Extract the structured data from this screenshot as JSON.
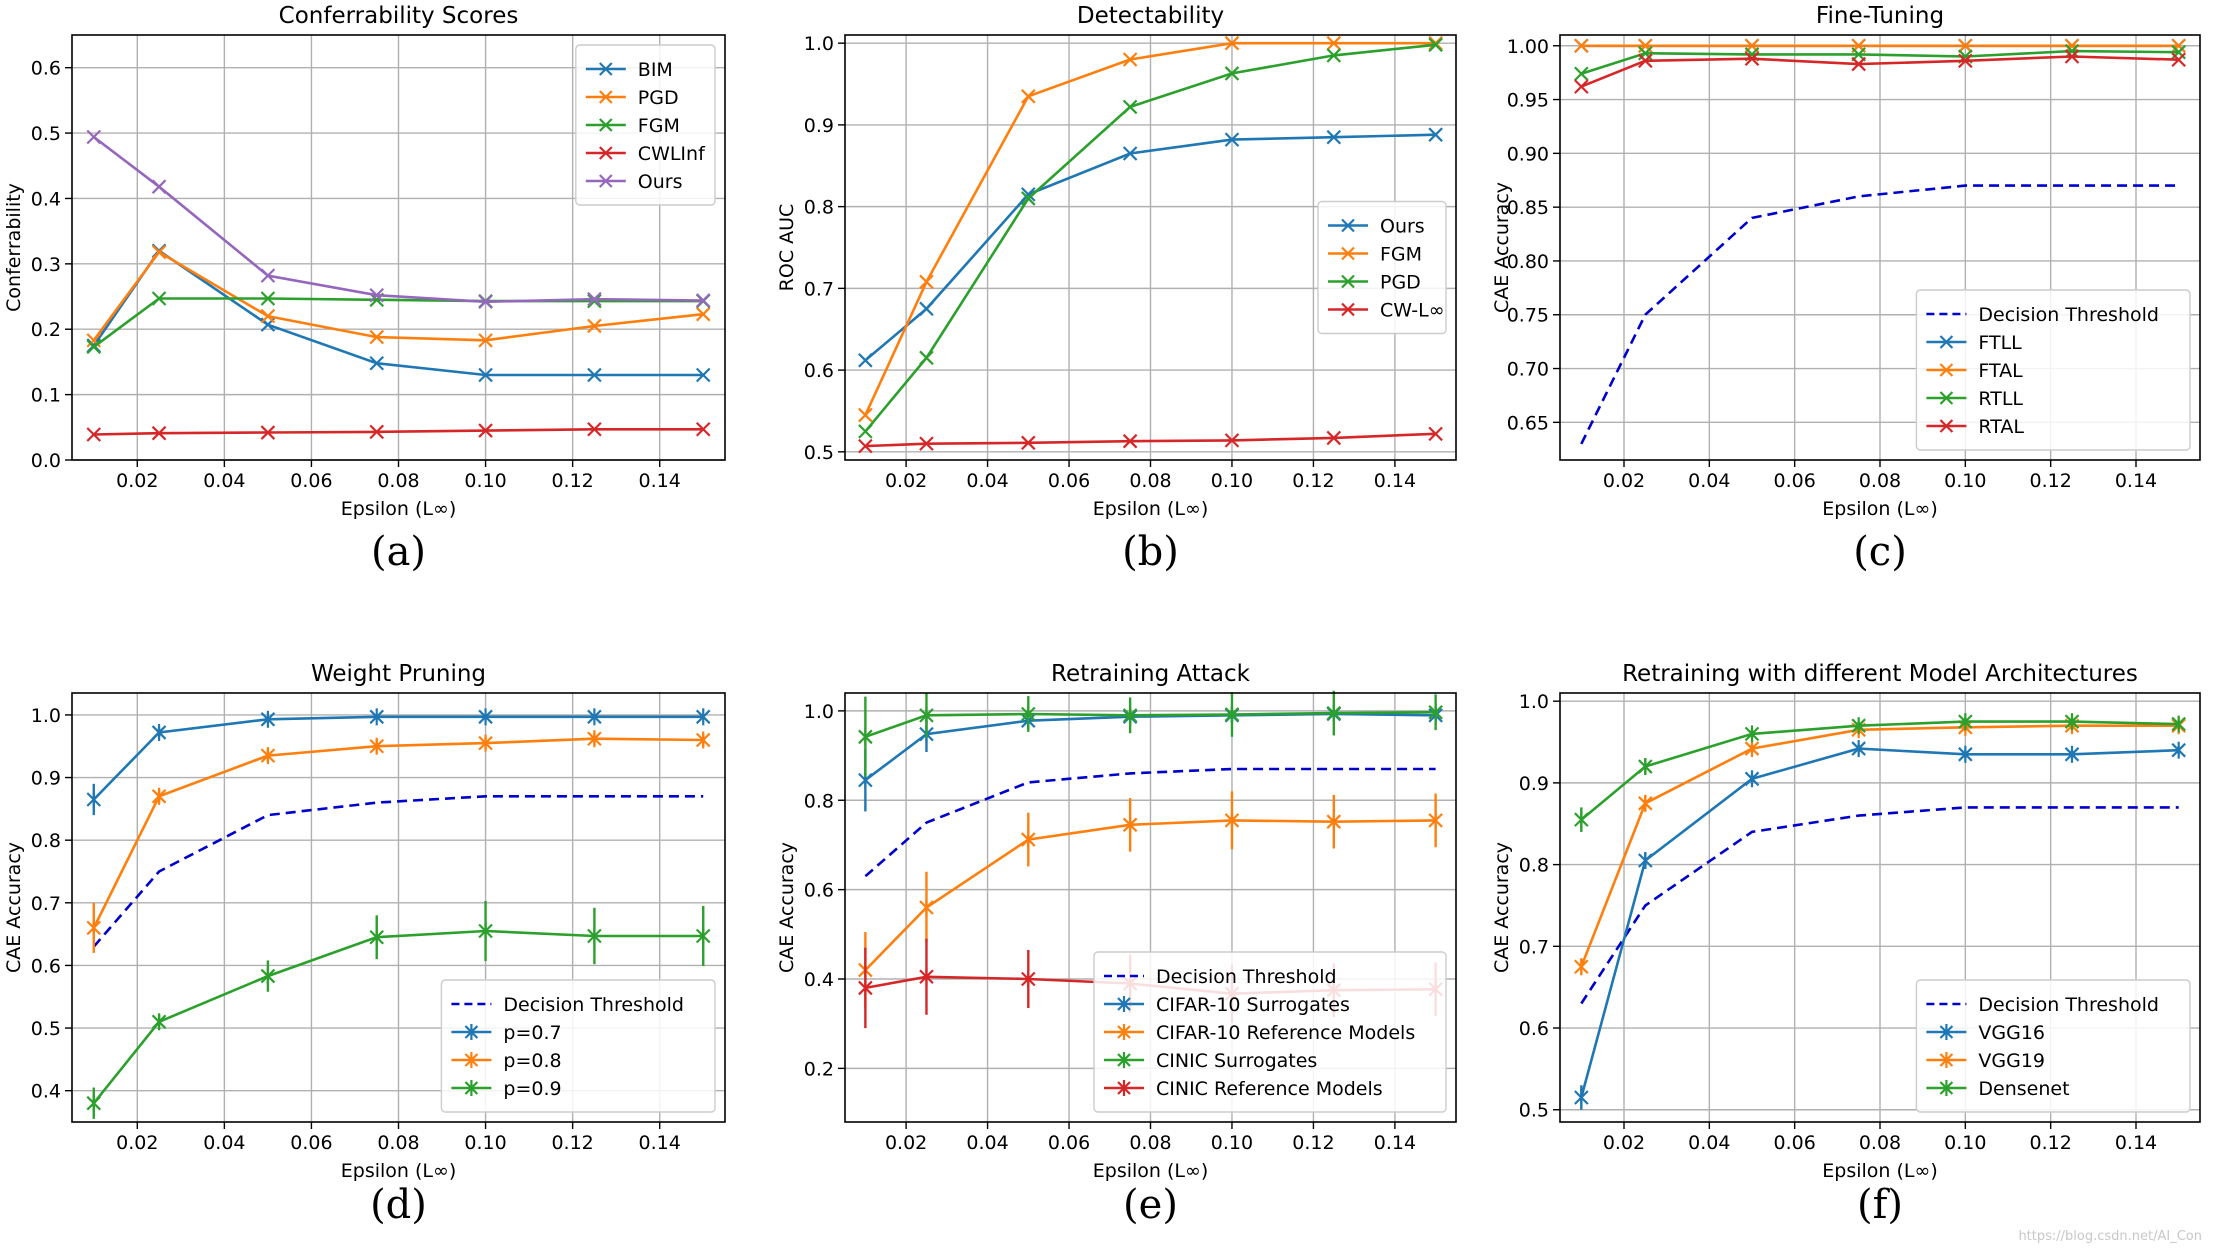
{
  "colors": {
    "blue": "#1f77b4",
    "orange": "#ff7f0e",
    "green": "#2ca02c",
    "red": "#d62728",
    "purple": "#9467bd",
    "threshold": "#0000cc"
  },
  "watermark": "https://blog.csdn.net/AI_Con",
  "chart_data": [
    {
      "type": "line",
      "caption": "(a)",
      "title": "Conferrability Scores",
      "xlabel": "Epsilon (L∞)",
      "ylabel": "Conferrability",
      "xlim": [
        0.005,
        0.155
      ],
      "ylim": [
        0,
        0.65
      ],
      "xticks": [
        0.02,
        0.04,
        0.06,
        0.08,
        0.1,
        0.12,
        0.14
      ],
      "xtick_labels": [
        "0.02",
        "0.04",
        "0.06",
        "0.08",
        "0.10",
        "0.12",
        "0.14"
      ],
      "yticks": [
        0,
        0.1,
        0.2,
        0.3,
        0.4,
        0.5,
        0.6
      ],
      "ytick_labels": [
        "0.0",
        "0.1",
        "0.2",
        "0.3",
        "0.4",
        "0.5",
        "0.6"
      ],
      "x": [
        0.01,
        0.025,
        0.05,
        0.075,
        0.1,
        0.125,
        0.15
      ],
      "legend_pos": "top-right",
      "series": [
        {
          "name": "BIM",
          "color": "#1f77b4",
          "marker": "x",
          "values": [
            0.175,
            0.32,
            0.207,
            0.148,
            0.13,
            0.13,
            0.13
          ]
        },
        {
          "name": "PGD",
          "color": "#ff7f0e",
          "marker": "x",
          "values": [
            0.183,
            0.318,
            0.22,
            0.188,
            0.183,
            0.205,
            0.223
          ]
        },
        {
          "name": "FGM",
          "color": "#2ca02c",
          "marker": "x",
          "values": [
            0.173,
            0.247,
            0.247,
            0.245,
            0.243,
            0.243,
            0.243
          ]
        },
        {
          "name": "CWLInf",
          "color": "#d62728",
          "marker": "x",
          "values": [
            0.039,
            0.041,
            0.042,
            0.043,
            0.045,
            0.047,
            0.047
          ]
        },
        {
          "name": "Ours",
          "color": "#9467bd",
          "marker": "x",
          "values": [
            0.494,
            0.418,
            0.282,
            0.252,
            0.242,
            0.246,
            0.244
          ]
        }
      ]
    },
    {
      "type": "line",
      "caption": "(b)",
      "title": "Detectability",
      "xlabel": "Epsilon (L∞)",
      "ylabel": "ROC AUC",
      "xlim": [
        0.005,
        0.155
      ],
      "ylim": [
        0.49,
        1.01
      ],
      "xticks": [
        0.02,
        0.04,
        0.06,
        0.08,
        0.1,
        0.12,
        0.14
      ],
      "xtick_labels": [
        "0.02",
        "0.04",
        "0.06",
        "0.08",
        "0.10",
        "0.12",
        "0.14"
      ],
      "yticks": [
        0.5,
        0.6,
        0.7,
        0.8,
        0.9,
        1.0
      ],
      "ytick_labels": [
        "0.5",
        "0.6",
        "0.7",
        "0.8",
        "0.9",
        "1.0"
      ],
      "x": [
        0.01,
        0.025,
        0.05,
        0.075,
        0.1,
        0.125,
        0.15
      ],
      "legend_pos": "center-right",
      "series": [
        {
          "name": "Ours",
          "color": "#1f77b4",
          "marker": "x",
          "values": [
            0.612,
            0.675,
            0.815,
            0.865,
            0.882,
            0.885,
            0.888
          ]
        },
        {
          "name": "FGM",
          "color": "#ff7f0e",
          "marker": "x",
          "values": [
            0.545,
            0.708,
            0.935,
            0.98,
            1.0,
            1.0,
            1.0
          ]
        },
        {
          "name": "PGD",
          "color": "#2ca02c",
          "marker": "x",
          "values": [
            0.525,
            0.615,
            0.81,
            0.922,
            0.963,
            0.985,
            0.998
          ]
        },
        {
          "name": "CW-L∞",
          "color": "#d62728",
          "marker": "x",
          "values": [
            0.507,
            0.51,
            0.511,
            0.513,
            0.514,
            0.517,
            0.522
          ]
        }
      ]
    },
    {
      "type": "line",
      "caption": "(c)",
      "title": "Fine-Tuning",
      "xlabel": "Epsilon (L∞)",
      "ylabel": "CAE Accuracy",
      "xlim": [
        0.005,
        0.155
      ],
      "ylim": [
        0.615,
        1.01
      ],
      "xticks": [
        0.02,
        0.04,
        0.06,
        0.08,
        0.1,
        0.12,
        0.14
      ],
      "xtick_labels": [
        "0.02",
        "0.04",
        "0.06",
        "0.08",
        "0.10",
        "0.12",
        "0.14"
      ],
      "yticks": [
        0.65,
        0.7,
        0.75,
        0.8,
        0.85,
        0.9,
        0.95,
        1.0
      ],
      "ytick_labels": [
        "0.65",
        "0.70",
        "0.75",
        "0.80",
        "0.85",
        "0.90",
        "0.95",
        "1.00"
      ],
      "x": [
        0.01,
        0.025,
        0.05,
        0.075,
        0.1,
        0.125,
        0.15
      ],
      "legend_pos": "bottom-right",
      "series": [
        {
          "name": "Decision Threshold",
          "color": "#0000cc",
          "dashed": true,
          "marker": "none",
          "values": [
            0.63,
            0.75,
            0.84,
            0.86,
            0.87,
            0.87,
            0.87
          ]
        },
        {
          "name": "FTLL",
          "color": "#1f77b4",
          "marker": "x",
          "values": [
            1.0,
            1.0,
            1.0,
            1.0,
            1.0,
            1.0,
            1.0
          ]
        },
        {
          "name": "FTAL",
          "color": "#ff7f0e",
          "marker": "x",
          "values": [
            1.0,
            1.0,
            1.0,
            1.0,
            1.0,
            1.0,
            1.0
          ]
        },
        {
          "name": "RTLL",
          "color": "#2ca02c",
          "marker": "x",
          "values": [
            0.974,
            0.993,
            0.992,
            0.992,
            0.99,
            0.995,
            0.994
          ]
        },
        {
          "name": "RTAL",
          "color": "#d62728",
          "marker": "x",
          "values": [
            0.962,
            0.986,
            0.988,
            0.983,
            0.986,
            0.99,
            0.987
          ]
        }
      ]
    },
    {
      "type": "line",
      "caption": "(d)",
      "title": "Weight Pruning",
      "xlabel": "Epsilon (L∞)",
      "ylabel": "CAE Accuracy",
      "xlim": [
        0.005,
        0.155
      ],
      "ylim": [
        0.35,
        1.035
      ],
      "xticks": [
        0.02,
        0.04,
        0.06,
        0.08,
        0.1,
        0.12,
        0.14
      ],
      "xtick_labels": [
        "0.02",
        "0.04",
        "0.06",
        "0.08",
        "0.10",
        "0.12",
        "0.14"
      ],
      "yticks": [
        0.4,
        0.5,
        0.6,
        0.7,
        0.8,
        0.9,
        1.0
      ],
      "ytick_labels": [
        "0.4",
        "0.5",
        "0.6",
        "0.7",
        "0.8",
        "0.9",
        "1.0"
      ],
      "x": [
        0.01,
        0.025,
        0.05,
        0.075,
        0.1,
        0.125,
        0.15
      ],
      "legend_pos": "bottom-right",
      "series": [
        {
          "name": "Decision Threshold",
          "color": "#0000cc",
          "dashed": true,
          "marker": "none",
          "values": [
            0.63,
            0.75,
            0.84,
            0.86,
            0.87,
            0.87,
            0.87
          ]
        },
        {
          "name": "p=0.7",
          "color": "#1f77b4",
          "marker": "star",
          "values": [
            0.865,
            0.972,
            0.993,
            0.997,
            0.997,
            0.997,
            0.997
          ],
          "errors": [
            0.025,
            0.008,
            0.004,
            0.003,
            0.003,
            0.003,
            0.003
          ]
        },
        {
          "name": "p=0.8",
          "color": "#ff7f0e",
          "marker": "star",
          "values": [
            0.66,
            0.87,
            0.935,
            0.95,
            0.955,
            0.962,
            0.96
          ],
          "errors": [
            0.04,
            0.01,
            0.01,
            0.01,
            0.01,
            0.01,
            0.01
          ]
        },
        {
          "name": "p=0.9",
          "color": "#2ca02c",
          "marker": "star",
          "values": [
            0.38,
            0.51,
            0.583,
            0.645,
            0.655,
            0.647,
            0.647
          ],
          "errors": [
            0.025,
            0.012,
            0.025,
            0.035,
            0.048,
            0.045,
            0.048
          ]
        }
      ]
    },
    {
      "type": "line",
      "caption": "(e)",
      "title": "Retraining Attack",
      "xlabel": "Epsilon (L∞)",
      "ylabel": "CAE Accuracy",
      "xlim": [
        0.005,
        0.155
      ],
      "ylim": [
        0.08,
        1.04
      ],
      "xticks": [
        0.02,
        0.04,
        0.06,
        0.08,
        0.1,
        0.12,
        0.14
      ],
      "xtick_labels": [
        "0.02",
        "0.04",
        "0.06",
        "0.08",
        "0.10",
        "0.12",
        "0.14"
      ],
      "yticks": [
        0.2,
        0.4,
        0.6,
        0.8,
        1.0
      ],
      "ytick_labels": [
        "0.2",
        "0.4",
        "0.6",
        "0.8",
        "1.0"
      ],
      "x": [
        0.01,
        0.025,
        0.05,
        0.075,
        0.1,
        0.125,
        0.15
      ],
      "legend_pos": "bottom-right",
      "series": [
        {
          "name": "Decision Threshold",
          "color": "#0000cc",
          "dashed": true,
          "marker": "none",
          "values": [
            0.63,
            0.75,
            0.84,
            0.86,
            0.87,
            0.87,
            0.87
          ]
        },
        {
          "name": "CIFAR-10 Surrogates",
          "color": "#1f77b4",
          "marker": "star",
          "values": [
            0.845,
            0.948,
            0.978,
            0.987,
            0.99,
            0.993,
            0.99
          ],
          "errors": [
            0.07,
            0.04,
            0.02,
            0.015,
            0.012,
            0.01,
            0.01
          ]
        },
        {
          "name": "CIFAR-10 Reference Models",
          "color": "#ff7f0e",
          "marker": "star",
          "values": [
            0.42,
            0.56,
            0.712,
            0.745,
            0.755,
            0.752,
            0.755
          ],
          "errors": [
            0.085,
            0.08,
            0.06,
            0.06,
            0.065,
            0.06,
            0.06
          ]
        },
        {
          "name": "CINIC Surrogates",
          "color": "#2ca02c",
          "marker": "star",
          "values": [
            0.942,
            0.99,
            0.993,
            0.99,
            0.992,
            0.995,
            0.997
          ],
          "errors": [
            0.09,
            0.05,
            0.04,
            0.04,
            0.05,
            0.05,
            0.04
          ]
        },
        {
          "name": "CINIC Reference Models",
          "color": "#d62728",
          "marker": "star",
          "values": [
            0.38,
            0.405,
            0.4,
            0.39,
            0.367,
            0.375,
            0.377
          ],
          "errors": [
            0.09,
            0.085,
            0.065,
            0.065,
            0.065,
            0.06,
            0.06
          ]
        }
      ]
    },
    {
      "type": "line",
      "caption": "(f)",
      "title": "Retraining with different Model Architectures",
      "xlabel": "Epsilon (L∞)",
      "ylabel": "CAE Accuracy",
      "xlim": [
        0.005,
        0.155
      ],
      "ylim": [
        0.485,
        1.01
      ],
      "xticks": [
        0.02,
        0.04,
        0.06,
        0.08,
        0.1,
        0.12,
        0.14
      ],
      "xtick_labels": [
        "0.02",
        "0.04",
        "0.06",
        "0.08",
        "0.10",
        "0.12",
        "0.14"
      ],
      "yticks": [
        0.5,
        0.6,
        0.7,
        0.8,
        0.9,
        1.0
      ],
      "ytick_labels": [
        "0.5",
        "0.6",
        "0.7",
        "0.8",
        "0.9",
        "1.0"
      ],
      "x": [
        0.01,
        0.025,
        0.05,
        0.075,
        0.1,
        0.125,
        0.15
      ],
      "legend_pos": "bottom-right",
      "series": [
        {
          "name": "Decision Threshold",
          "color": "#0000cc",
          "dashed": true,
          "marker": "none",
          "values": [
            0.63,
            0.75,
            0.84,
            0.86,
            0.87,
            0.87,
            0.87
          ]
        },
        {
          "name": "VGG16",
          "color": "#1f77b4",
          "marker": "star",
          "values": [
            0.515,
            0.805,
            0.905,
            0.942,
            0.935,
            0.935,
            0.94
          ],
          "errors": [
            0.015,
            0.01,
            0.005,
            0.005,
            0.005,
            0.005,
            0.005
          ]
        },
        {
          "name": "VGG19",
          "color": "#ff7f0e",
          "marker": "star",
          "values": [
            0.675,
            0.875,
            0.942,
            0.965,
            0.968,
            0.97,
            0.97
          ],
          "errors": [
            0.01,
            0.01,
            0.005,
            0.005,
            0.005,
            0.005,
            0.005
          ]
        },
        {
          "name": "Densenet",
          "color": "#2ca02c",
          "marker": "star",
          "values": [
            0.855,
            0.92,
            0.96,
            0.97,
            0.975,
            0.975,
            0.972
          ],
          "errors": [
            0.015,
            0.01,
            0.005,
            0.005,
            0.005,
            0.005,
            0.005
          ]
        }
      ]
    }
  ]
}
